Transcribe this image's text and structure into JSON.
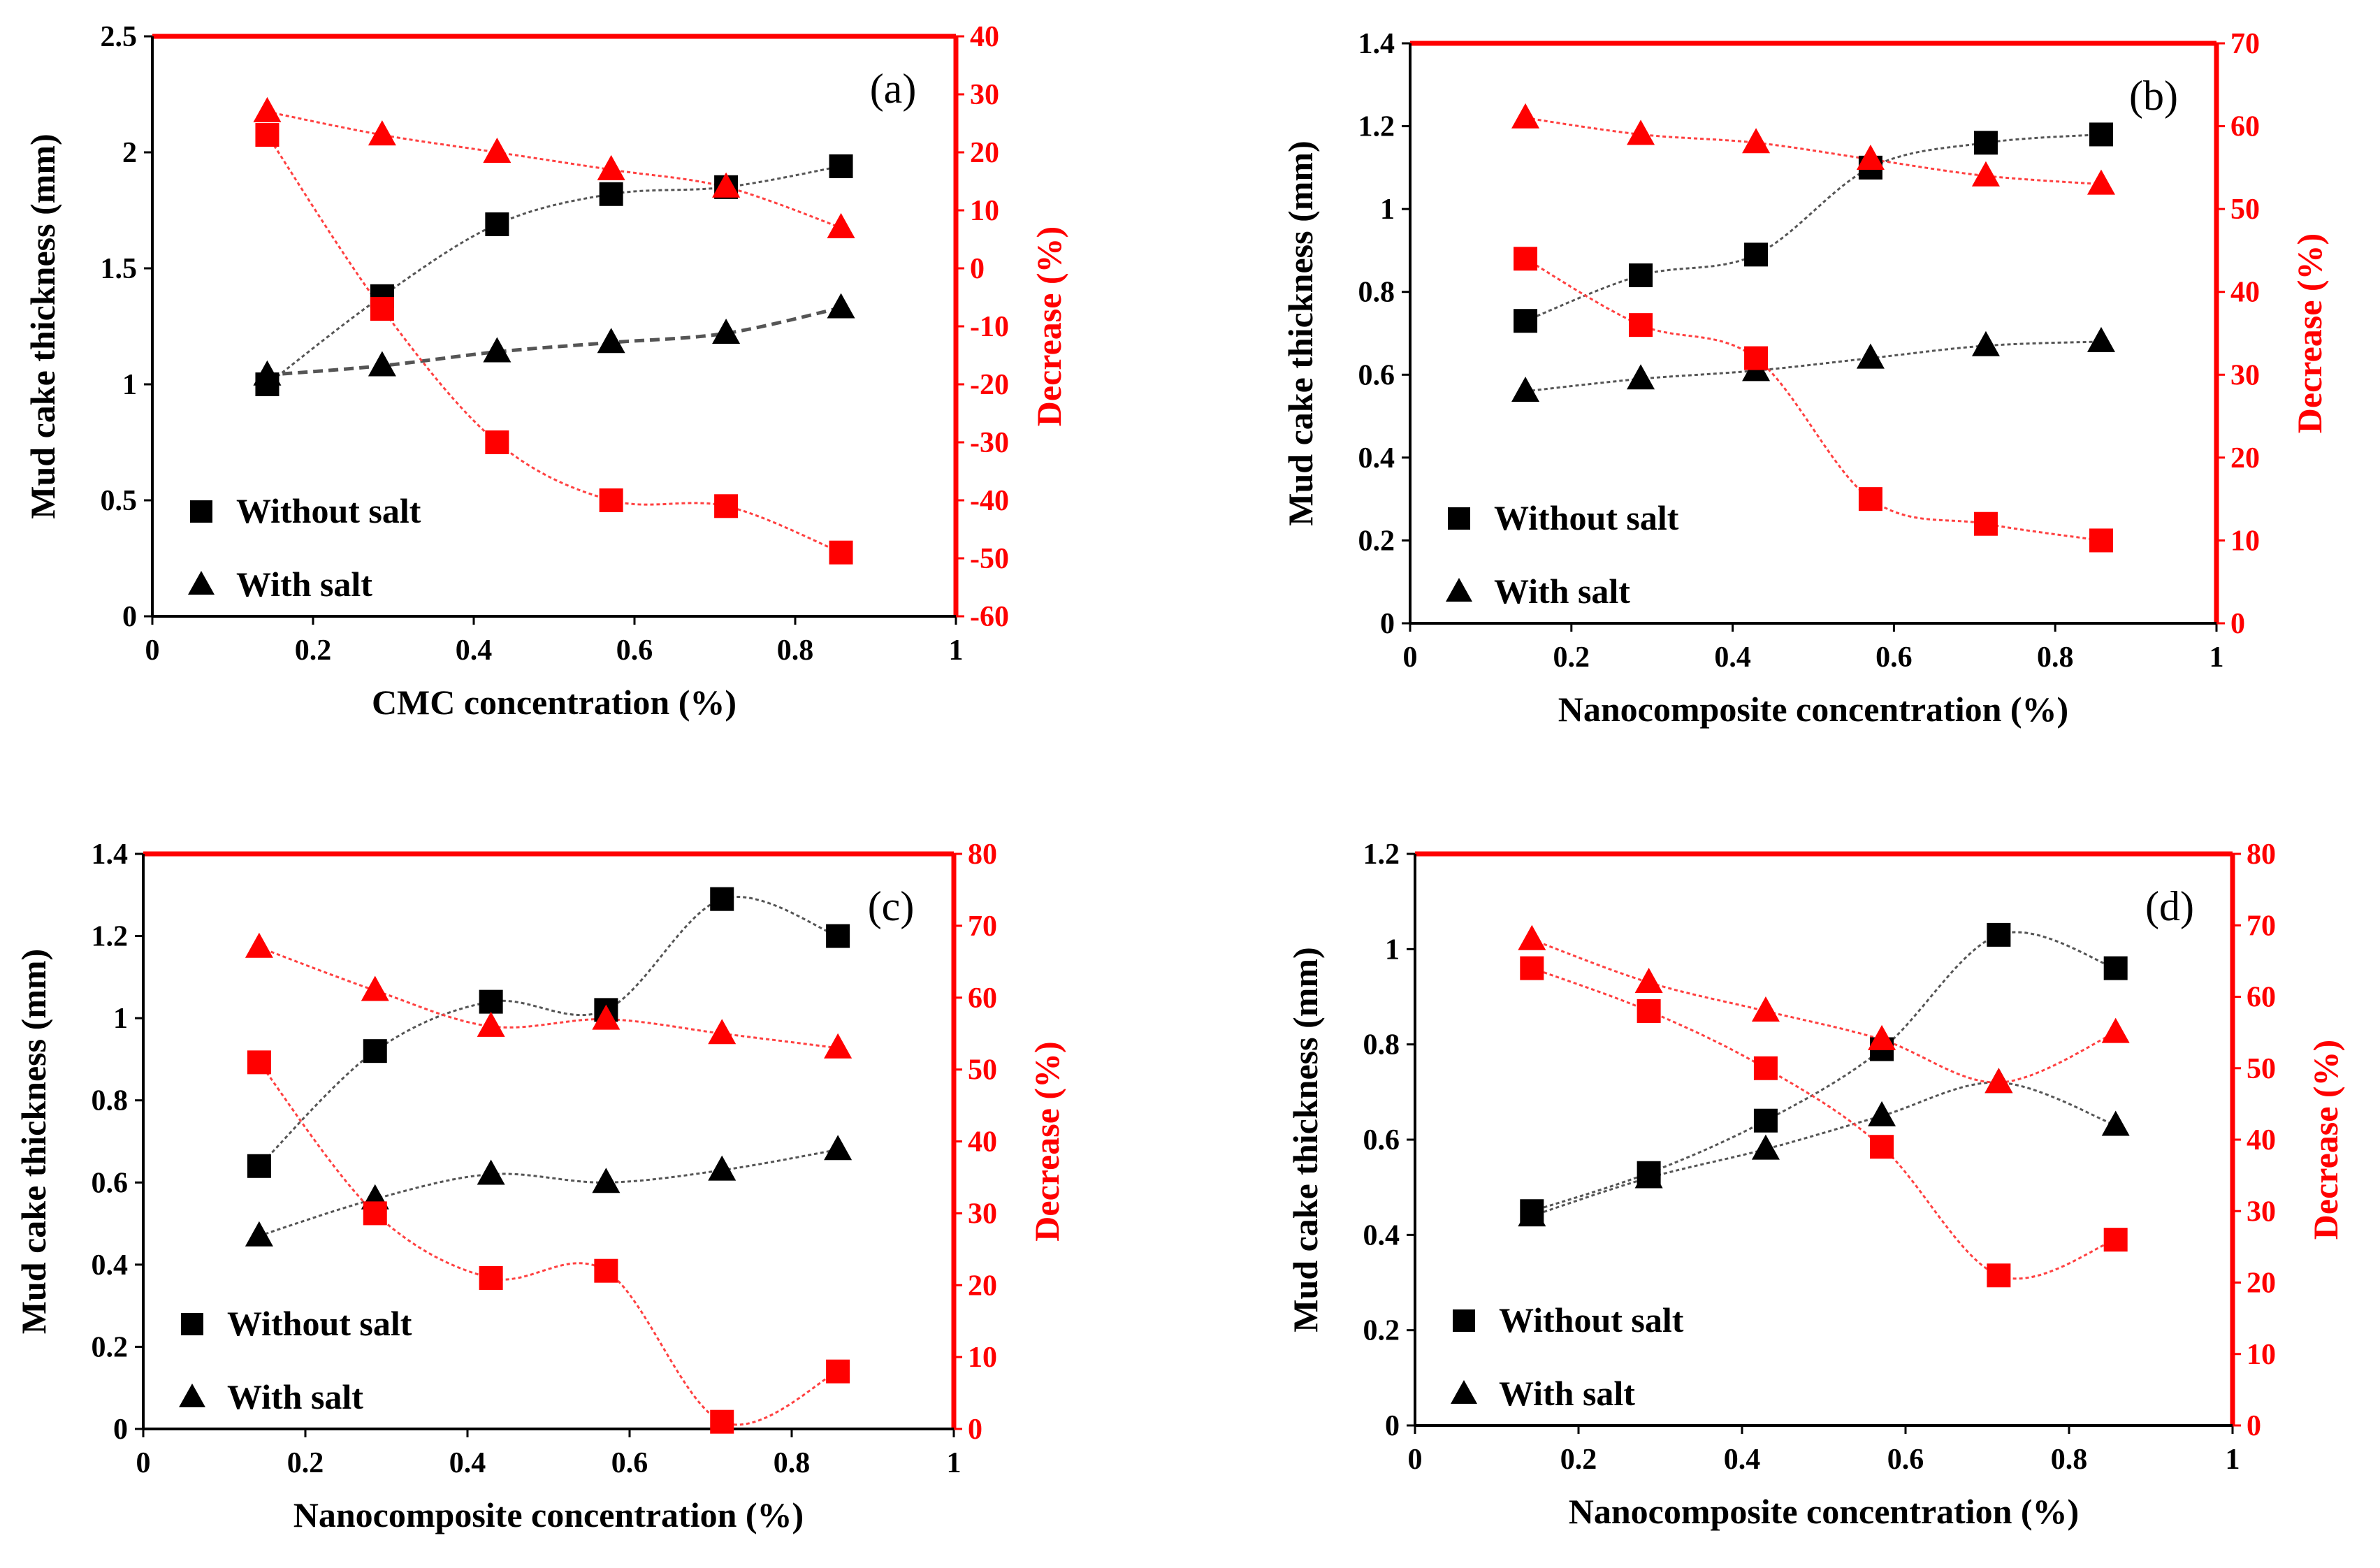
{
  "colors": {
    "black_series": "#000000",
    "red_series": "#ff0000",
    "black_trend": "#555555",
    "red_trend": "#ff4040"
  },
  "chart_data": [
    {
      "type": "scatter",
      "panel_label": "(a)",
      "xlabel": "CMC concentration (%)",
      "ylabel": "Mud cake thickness (mm)",
      "y2label": "Decrease (%)",
      "xlim": [
        0,
        1
      ],
      "xticks": [
        0,
        0.2,
        0.4,
        0.6,
        0.8,
        1
      ],
      "ylim": [
        0,
        2.5
      ],
      "yticks": [
        0,
        0.5,
        1,
        1.5,
        2,
        2.5
      ],
      "y2lim": [
        -60,
        40
      ],
      "y2ticks": [
        -60,
        -50,
        -40,
        -30,
        -20,
        -10,
        0,
        10,
        20,
        30,
        40
      ],
      "x": [
        0.143,
        0.286,
        0.429,
        0.571,
        0.714,
        0.857
      ],
      "legend": [
        "Without salt",
        "With salt"
      ],
      "series": [
        {
          "name": "Without salt",
          "axis": "left",
          "marker": "square",
          "color": "#000000",
          "values": [
            1.0,
            1.38,
            1.69,
            1.82,
            1.85,
            1.94
          ]
        },
        {
          "name": "With salt",
          "axis": "left",
          "marker": "triangle",
          "color": "#000000",
          "values": [
            1.04,
            1.08,
            1.14,
            1.18,
            1.22,
            1.33
          ]
        },
        {
          "axis": "right",
          "marker": "square",
          "color": "#ff0000",
          "values": [
            23,
            -7,
            -30,
            -40,
            -41,
            -49
          ]
        },
        {
          "axis": "right",
          "marker": "triangle",
          "color": "#ff0000",
          "values": [
            27,
            23,
            20,
            17,
            14,
            7
          ]
        }
      ]
    },
    {
      "type": "scatter",
      "panel_label": "(b)",
      "xlabel": "Nanocomposite concentration (%)",
      "ylabel": "Mud cake thickness (mm)",
      "y2label": "Decrease (%)",
      "xlim": [
        0,
        1
      ],
      "xticks": [
        0,
        0.2,
        0.4,
        0.6,
        0.8,
        1
      ],
      "ylim": [
        0,
        1.4
      ],
      "yticks": [
        0,
        0.2,
        0.4,
        0.6,
        0.8,
        1,
        1.2,
        1.4
      ],
      "y2lim": [
        0,
        70
      ],
      "y2ticks": [
        0,
        10,
        20,
        30,
        40,
        50,
        60,
        70
      ],
      "x": [
        0.143,
        0.286,
        0.429,
        0.571,
        0.714,
        0.857
      ],
      "legend": [
        "Without salt",
        "With salt"
      ],
      "series": [
        {
          "name": "Without salt",
          "axis": "left",
          "marker": "square",
          "color": "#000000",
          "values": [
            0.73,
            0.84,
            0.89,
            1.1,
            1.16,
            1.18
          ]
        },
        {
          "name": "With salt",
          "axis": "left",
          "marker": "triangle",
          "color": "#000000",
          "values": [
            0.56,
            0.59,
            0.61,
            0.64,
            0.67,
            0.68
          ]
        },
        {
          "axis": "right",
          "marker": "square",
          "color": "#ff0000",
          "values": [
            44,
            36,
            32,
            15,
            12,
            10
          ]
        },
        {
          "axis": "right",
          "marker": "triangle",
          "color": "#ff0000",
          "values": [
            61,
            59,
            58,
            56,
            54,
            53
          ]
        }
      ]
    },
    {
      "type": "scatter",
      "panel_label": "(c)",
      "xlabel": "Nanocomposite concentration (%)",
      "ylabel": "Mud cake thickness (mm)",
      "y2label": "Decrease (%)",
      "xlim": [
        0,
        1
      ],
      "xticks": [
        0,
        0.2,
        0.4,
        0.6,
        0.8,
        1
      ],
      "ylim": [
        0,
        1.4
      ],
      "yticks": [
        0,
        0.2,
        0.4,
        0.6,
        0.8,
        1,
        1.2,
        1.4
      ],
      "y2lim": [
        0,
        80
      ],
      "y2ticks": [
        0,
        10,
        20,
        30,
        40,
        50,
        60,
        70,
        80
      ],
      "x": [
        0.143,
        0.286,
        0.429,
        0.571,
        0.714,
        0.857
      ],
      "legend": [
        "Without salt",
        "With salt"
      ],
      "series": [
        {
          "name": "Without salt",
          "axis": "left",
          "marker": "square",
          "color": "#000000",
          "values": [
            0.64,
            0.92,
            1.04,
            1.02,
            1.29,
            1.2
          ]
        },
        {
          "name": "With salt",
          "axis": "left",
          "marker": "triangle",
          "color": "#000000",
          "values": [
            0.47,
            0.56,
            0.62,
            0.6,
            0.63,
            0.68
          ]
        },
        {
          "axis": "right",
          "marker": "square",
          "color": "#ff0000",
          "values": [
            51,
            30,
            21,
            22,
            1,
            8
          ]
        },
        {
          "axis": "right",
          "marker": "triangle",
          "color": "#ff0000",
          "values": [
            67,
            61,
            56,
            57,
            55,
            53
          ]
        }
      ]
    },
    {
      "type": "scatter",
      "panel_label": "(d)",
      "xlabel": "Nanocomposite concentration (%)",
      "ylabel": "Mud cake thickness (mm)",
      "y2label": "Decrease (%)",
      "xlim": [
        0,
        1
      ],
      "xticks": [
        0,
        0.2,
        0.4,
        0.6,
        0.8,
        1
      ],
      "ylim": [
        0,
        1.2
      ],
      "yticks": [
        0,
        0.2,
        0.4,
        0.6,
        0.8,
        1,
        1.2
      ],
      "y2lim": [
        0,
        80
      ],
      "y2ticks": [
        0,
        10,
        20,
        30,
        40,
        50,
        60,
        70,
        80
      ],
      "x": [
        0.143,
        0.286,
        0.429,
        0.571,
        0.714,
        0.857
      ],
      "legend": [
        "Without salt",
        "With salt"
      ],
      "series": [
        {
          "name": "Without salt",
          "axis": "left",
          "marker": "square",
          "color": "#000000",
          "values": [
            0.45,
            0.53,
            0.64,
            0.79,
            1.03,
            0.96
          ]
        },
        {
          "name": "With salt",
          "axis": "left",
          "marker": "triangle",
          "color": "#000000",
          "values": [
            0.44,
            0.52,
            0.58,
            0.65,
            0.72,
            0.63
          ]
        },
        {
          "axis": "right",
          "marker": "square",
          "color": "#ff0000",
          "values": [
            64,
            58,
            50,
            39,
            21,
            26
          ]
        },
        {
          "axis": "right",
          "marker": "triangle",
          "color": "#ff0000",
          "values": [
            68,
            62,
            58,
            54,
            48,
            55
          ]
        }
      ]
    }
  ]
}
